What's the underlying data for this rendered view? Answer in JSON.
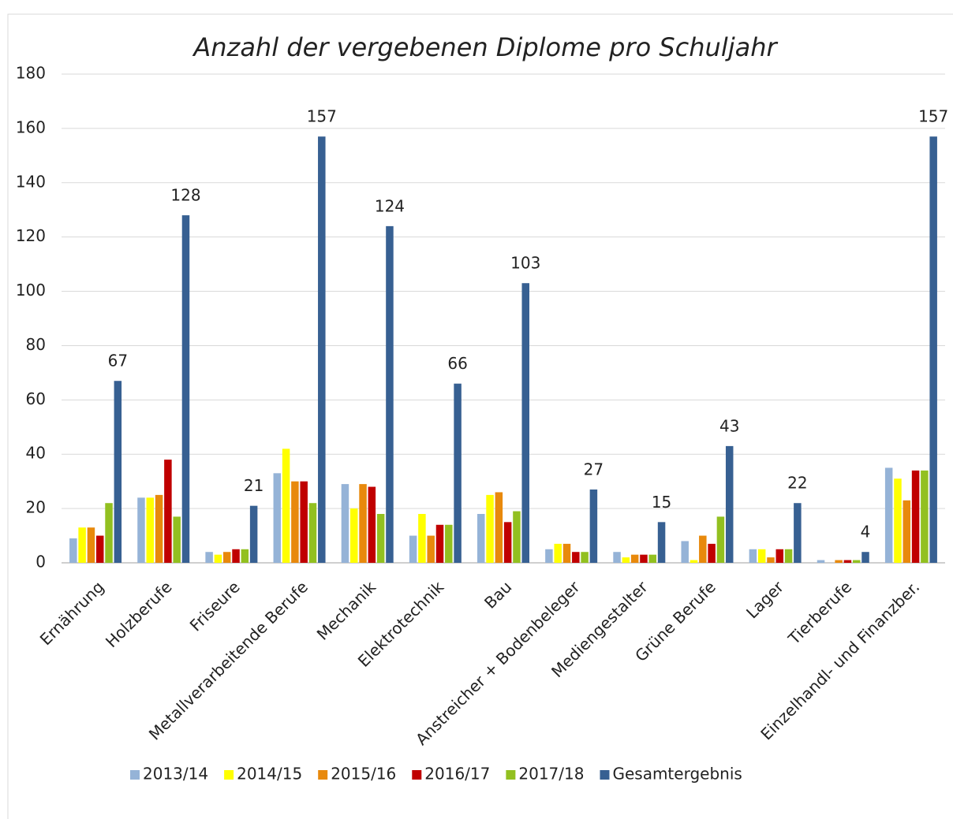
{
  "chart_data": {
    "type": "bar",
    "title": "Anzahl der vergebenen Diplome pro Schuljahr",
    "categories": [
      "Ernährung",
      "Holzberufe",
      "Friseure",
      "Metallverarbeitende Berufe",
      "Mechanik",
      "Elektrotechnik",
      "Bau",
      "Anstreicher + Bodenbeleger",
      "Mediengestalter",
      "Grüne Berufe",
      "Lager",
      "Tierberufe",
      "Einzelhandl- und Finanzber."
    ],
    "series": [
      {
        "name": "2013/14",
        "color": "#95b3d7",
        "values": [
          9,
          24,
          4,
          33,
          29,
          10,
          18,
          5,
          4,
          8,
          5,
          1,
          35
        ]
      },
      {
        "name": "2014/15",
        "color": "#ffff00",
        "values": [
          13,
          24,
          3,
          42,
          20,
          18,
          25,
          7,
          2,
          1,
          5,
          0,
          31
        ]
      },
      {
        "name": "2015/16",
        "color": "#e8890c",
        "values": [
          13,
          25,
          4,
          30,
          29,
          10,
          26,
          7,
          3,
          10,
          2,
          1,
          23
        ]
      },
      {
        "name": "2016/17",
        "color": "#c00000",
        "values": [
          10,
          38,
          5,
          30,
          28,
          14,
          15,
          4,
          3,
          7,
          5,
          1,
          34
        ]
      },
      {
        "name": "2017/18",
        "color": "#92c020",
        "values": [
          22,
          17,
          5,
          22,
          18,
          14,
          19,
          4,
          3,
          17,
          5,
          1,
          34
        ]
      },
      {
        "name": "Gesamtergebnis",
        "color": "#376092",
        "values": [
          67,
          128,
          21,
          157,
          124,
          66,
          103,
          27,
          15,
          43,
          22,
          4,
          157
        ],
        "data_labels": true
      }
    ],
    "ylim": [
      0,
      180
    ],
    "yticks": [
      0,
      20,
      40,
      60,
      80,
      100,
      120,
      140,
      160,
      180
    ],
    "grid": true,
    "legend": "bottom"
  }
}
